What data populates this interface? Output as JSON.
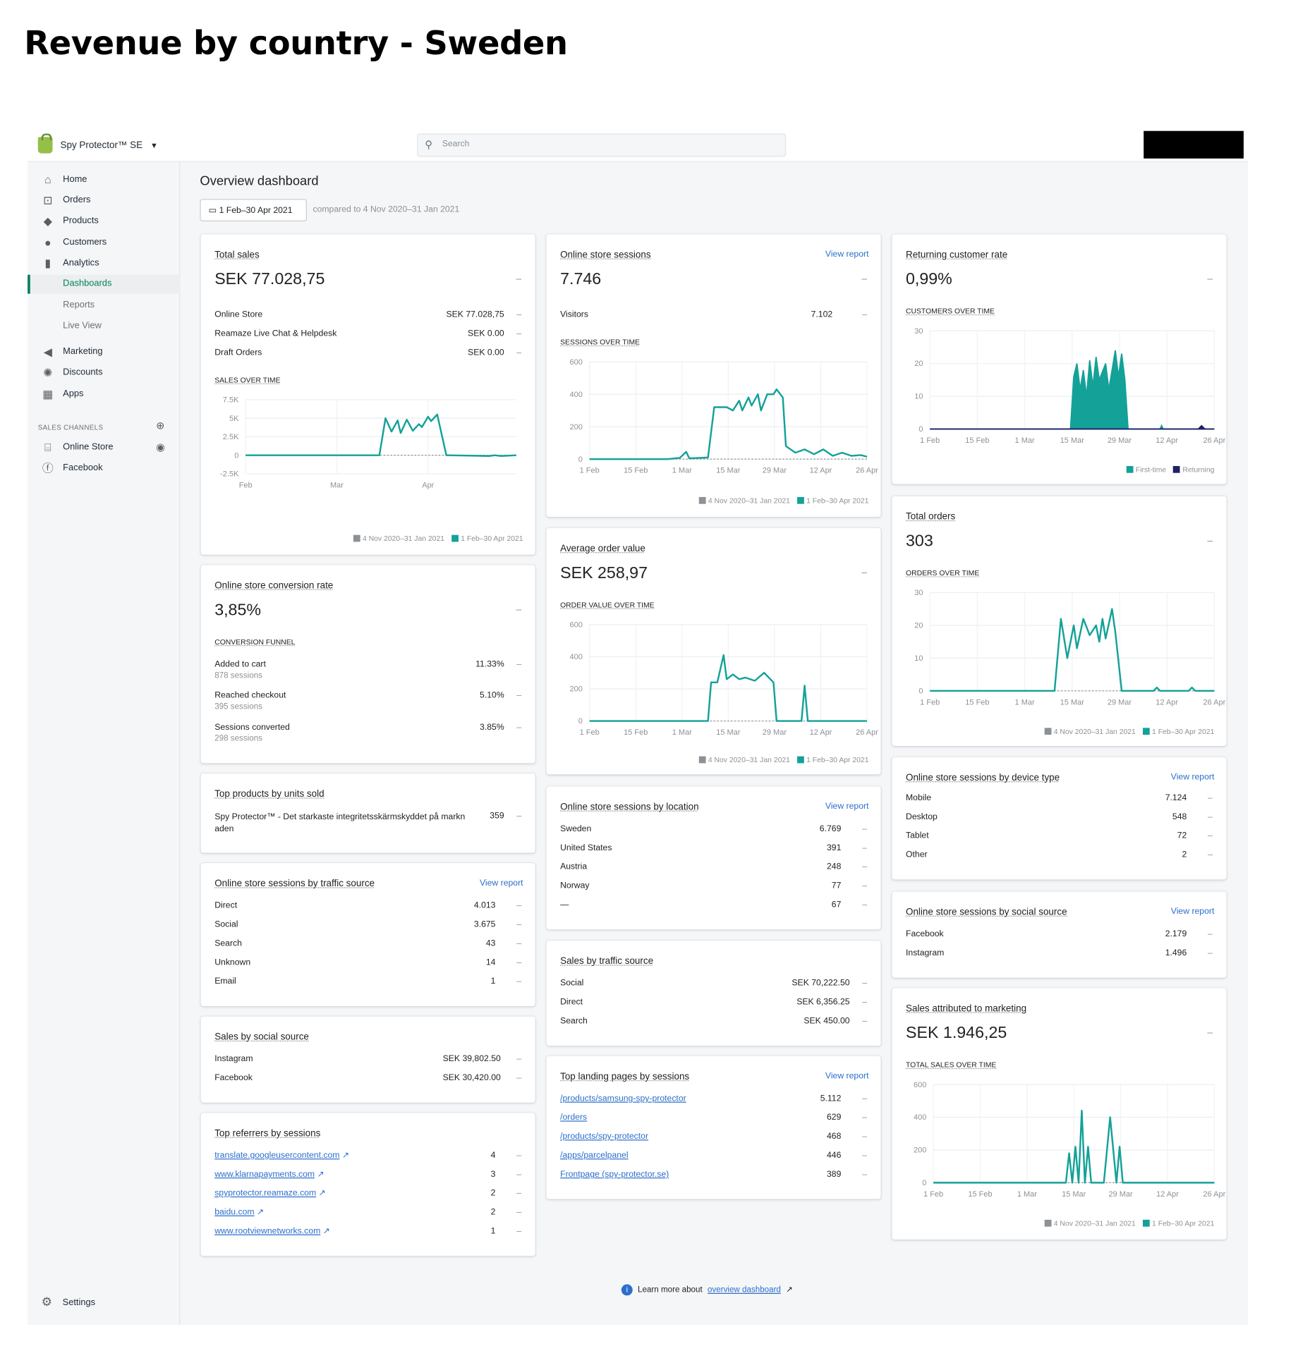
{
  "page_heading": "Revenue by country - Sweden",
  "topbar": {
    "store_name": "Spy Protector™ SE",
    "search_placeholder": "Search"
  },
  "sidebar": {
    "items": [
      {
        "label": "Home",
        "icon": "home-icon"
      },
      {
        "label": "Orders",
        "icon": "orders-icon"
      },
      {
        "label": "Products",
        "icon": "tag-icon"
      },
      {
        "label": "Customers",
        "icon": "person-icon"
      },
      {
        "label": "Analytics",
        "icon": "bar-chart-icon"
      },
      {
        "label": "Dashboards"
      },
      {
        "label": "Reports"
      },
      {
        "label": "Live View"
      },
      {
        "label": "Marketing",
        "icon": "megaphone-icon"
      },
      {
        "label": "Discounts",
        "icon": "discount-icon"
      },
      {
        "label": "Apps",
        "icon": "apps-icon"
      }
    ],
    "sales_channels_label": "SALES CHANNELS",
    "channels": [
      {
        "label": "Online Store"
      },
      {
        "label": "Facebook"
      }
    ],
    "settings_label": "Settings"
  },
  "dashboard": {
    "title": "Overview dashboard",
    "date_range": "1 Feb–30 Apr 2021",
    "compare_text": "compared to 4 Nov 2020–31 Jan 2021",
    "legend_prev": "4 Nov 2020–31 Jan 2021",
    "legend_curr": "1 Feb–30 Apr 2021",
    "view_report": "View report",
    "dash": "–",
    "footer": {
      "prefix": "Learn more about",
      "link": "overview dashboard"
    }
  },
  "total_sales": {
    "title": "Total sales",
    "value": "SEK 77.028,75",
    "rows": [
      {
        "label": "Online Store",
        "value": "SEK 77.028,75"
      },
      {
        "label": "Reamaze Live Chat & Helpdesk",
        "value": "SEK 0.00"
      },
      {
        "label": "Draft Orders",
        "value": "SEK 0.00"
      }
    ],
    "chart_label": "SALES OVER TIME"
  },
  "conversion": {
    "title": "Online store conversion rate",
    "value": "3,85%",
    "funnel_label": "CONVERSION FUNNEL",
    "rows": [
      {
        "label": "Added to cart",
        "sub": "878 sessions",
        "value": "11.33%"
      },
      {
        "label": "Reached checkout",
        "sub": "395 sessions",
        "value": "5.10%"
      },
      {
        "label": "Sessions converted",
        "sub": "298 sessions",
        "value": "3.85%"
      }
    ]
  },
  "top_products": {
    "title": "Top products by units sold",
    "rows": [
      {
        "label": "Spy Protector™ - Det starkaste integritetsskärmskyddet på markn aden",
        "value": "359"
      }
    ]
  },
  "traffic_sessions": {
    "title": "Online store sessions by traffic source",
    "rows": [
      {
        "label": "Direct",
        "value": "4.013"
      },
      {
        "label": "Social",
        "value": "3.675"
      },
      {
        "label": "Search",
        "value": "43"
      },
      {
        "label": "Unknown",
        "value": "14"
      },
      {
        "label": "Email",
        "value": "1"
      }
    ]
  },
  "social_sales": {
    "title": "Sales by social source",
    "rows": [
      {
        "label": "Instagram",
        "value": "SEK 39,802.50"
      },
      {
        "label": "Facebook",
        "value": "SEK 30,420.00"
      }
    ]
  },
  "referrers": {
    "title": "Top referrers by sessions",
    "rows": [
      {
        "label": "translate.googleusercontent.com",
        "value": "4"
      },
      {
        "label": "www.klarnapayments.com",
        "value": "3"
      },
      {
        "label": "spyprotector.reamaze.com",
        "value": "2"
      },
      {
        "label": "baidu.com",
        "value": "2"
      },
      {
        "label": "www.rootviewnetworks.com",
        "value": "1"
      }
    ]
  },
  "sessions": {
    "title": "Online store sessions",
    "value": "7.746",
    "rows": [
      {
        "label": "Visitors",
        "value": "7.102"
      }
    ],
    "chart_label": "SESSIONS OVER TIME"
  },
  "aov": {
    "title": "Average order value",
    "value": "SEK 258,97",
    "chart_label": "ORDER VALUE OVER TIME"
  },
  "location": {
    "title": "Online store sessions by location",
    "rows": [
      {
        "label": "Sweden",
        "value": "6.769"
      },
      {
        "label": "United States",
        "value": "391"
      },
      {
        "label": "Austria",
        "value": "248"
      },
      {
        "label": "Norway",
        "value": "77"
      },
      {
        "label": "—",
        "value": "67"
      }
    ]
  },
  "traffic_sales": {
    "title": "Sales by traffic source",
    "rows": [
      {
        "label": "Social",
        "value": "SEK 70,222.50"
      },
      {
        "label": "Direct",
        "value": "SEK 6,356.25"
      },
      {
        "label": "Search",
        "value": "SEK 450.00"
      }
    ]
  },
  "landing": {
    "title": "Top landing pages by sessions",
    "rows": [
      {
        "label": "/products/samsung-spy-protector",
        "value": "5.112"
      },
      {
        "label": "/orders",
        "value": "629"
      },
      {
        "label": "/products/spy-protector",
        "value": "468"
      },
      {
        "label": "/apps/parcelpanel",
        "value": "446"
      },
      {
        "label": "Frontpage (spy-protector.se)",
        "value": "389"
      }
    ]
  },
  "returning": {
    "title": "Returning customer rate",
    "value": "0,99%",
    "chart_label": "CUSTOMERS OVER TIME",
    "legend_first": "First-time",
    "legend_returning": "Returning"
  },
  "orders": {
    "title": "Total orders",
    "value": "303",
    "chart_label": "ORDERS OVER TIME"
  },
  "device": {
    "title": "Online store sessions by device type",
    "rows": [
      {
        "label": "Mobile",
        "value": "7.124"
      },
      {
        "label": "Desktop",
        "value": "548"
      },
      {
        "label": "Tablet",
        "value": "72"
      },
      {
        "label": "Other",
        "value": "2"
      }
    ]
  },
  "social_sessions": {
    "title": "Online store sessions by social source",
    "rows": [
      {
        "label": "Facebook",
        "value": "2.179"
      },
      {
        "label": "Instagram",
        "value": "1.496"
      }
    ]
  },
  "marketing": {
    "title": "Sales attributed to marketing",
    "value": "SEK 1.946,25",
    "chart_label": "TOTAL SALES OVER TIME"
  },
  "colors": {
    "accent": "#14a198",
    "prev_series": "#8c9196",
    "returning": "#1f2164",
    "link": "#2c6ecb",
    "active_nav": "#008060"
  },
  "chart_data": [
    {
      "id": "sales",
      "type": "line",
      "x_ticks": [
        "Feb",
        "Mar",
        "Apr"
      ],
      "y_ticks": [
        "7.5K",
        "5K",
        "2.5K",
        "0",
        "-2.5K"
      ],
      "ylim": [
        -2500,
        7500
      ],
      "x_range": [
        0,
        89
      ],
      "series": [
        {
          "name": "1 Feb–30 Apr 2021",
          "values": [
            [
              0,
              0
            ],
            [
              44,
              0
            ],
            [
              46,
              5000
            ],
            [
              48,
              3200
            ],
            [
              50,
              4700
            ],
            [
              51,
              3000
            ],
            [
              53,
              4800
            ],
            [
              55,
              3300
            ],
            [
              57,
              4200
            ],
            [
              58,
              3800
            ],
            [
              60,
              5200
            ],
            [
              61,
              4600
            ],
            [
              63,
              5500
            ],
            [
              66,
              0
            ],
            [
              80,
              -100
            ],
            [
              82,
              0
            ],
            [
              84,
              -100
            ],
            [
              89,
              0
            ]
          ]
        }
      ]
    },
    {
      "id": "sessions",
      "type": "line",
      "x_ticks": [
        "1 Feb",
        "15 Feb",
        "1 Mar",
        "15 Mar",
        "29 Mar",
        "12 Apr",
        "26 Apr"
      ],
      "y_ticks": [
        "600",
        "400",
        "200",
        "0"
      ],
      "ylim": [
        0,
        600
      ],
      "x_range": [
        0,
        89
      ],
      "series": [
        {
          "name": "1 Feb–30 Apr 2021",
          "values": [
            [
              0,
              0
            ],
            [
              25,
              0
            ],
            [
              29,
              8
            ],
            [
              31,
              45
            ],
            [
              32,
              5
            ],
            [
              38,
              10
            ],
            [
              40,
              320
            ],
            [
              44,
              320
            ],
            [
              46,
              300
            ],
            [
              48,
              360
            ],
            [
              49,
              300
            ],
            [
              51,
              380
            ],
            [
              52,
              330
            ],
            [
              54,
              400
            ],
            [
              55,
              300
            ],
            [
              57,
              400
            ],
            [
              59,
              400
            ],
            [
              60,
              430
            ],
            [
              62,
              380
            ],
            [
              63,
              80
            ],
            [
              66,
              40
            ],
            [
              69,
              60
            ],
            [
              72,
              30
            ],
            [
              75,
              60
            ],
            [
              78,
              20
            ],
            [
              81,
              40
            ],
            [
              84,
              20
            ],
            [
              87,
              25
            ],
            [
              89,
              15
            ]
          ]
        }
      ]
    },
    {
      "id": "aov",
      "type": "line",
      "x_ticks": [
        "1 Feb",
        "15 Feb",
        "1 Mar",
        "15 Mar",
        "29 Mar",
        "12 Apr",
        "26 Apr"
      ],
      "y_ticks": [
        "600",
        "400",
        "200",
        "0"
      ],
      "ylim": [
        0,
        600
      ],
      "x_range": [
        0,
        89
      ],
      "series": [
        {
          "name": "1 Feb–30 Apr 2021",
          "values": [
            [
              0,
              0
            ],
            [
              38,
              0
            ],
            [
              39,
              240
            ],
            [
              41,
              240
            ],
            [
              43,
              410
            ],
            [
              44,
              260
            ],
            [
              46,
              290
            ],
            [
              48,
              260
            ],
            [
              50,
              270
            ],
            [
              53,
              250
            ],
            [
              56,
              300
            ],
            [
              59,
              240
            ],
            [
              60,
              0
            ],
            [
              68,
              0
            ],
            [
              69,
              220
            ],
            [
              70,
              0
            ],
            [
              89,
              0
            ]
          ]
        }
      ]
    },
    {
      "id": "returning",
      "type": "area",
      "x_ticks": [
        "1 Feb",
        "15 Feb",
        "1 Mar",
        "15 Mar",
        "29 Mar",
        "12 Apr",
        "26 Apr"
      ],
      "y_ticks": [
        "30",
        "20",
        "10",
        "0"
      ],
      "ylim": [
        0,
        30
      ],
      "x_range": [
        0,
        89
      ],
      "series": [
        {
          "name": "First-time",
          "values": [
            [
              0,
              0
            ],
            [
              44,
              0
            ],
            [
              45,
              16
            ],
            [
              46,
              20
            ],
            [
              47,
              12
            ],
            [
              48,
              18
            ],
            [
              49,
              10
            ],
            [
              50,
              21
            ],
            [
              51,
              13
            ],
            [
              52,
              22
            ],
            [
              53,
              15
            ],
            [
              55,
              20
            ],
            [
              56,
              12
            ],
            [
              58,
              24
            ],
            [
              59,
              16
            ],
            [
              60,
              23
            ],
            [
              61,
              15
            ],
            [
              62,
              0
            ],
            [
              72,
              0
            ],
            [
              72.5,
              1
            ],
            [
              73,
              0
            ],
            [
              89,
              0
            ]
          ]
        },
        {
          "name": "Returning",
          "values": [
            [
              0,
              0
            ],
            [
              84,
              0
            ],
            [
              85,
              1
            ],
            [
              86,
              0
            ],
            [
              89,
              0
            ]
          ]
        }
      ]
    },
    {
      "id": "orders",
      "type": "line",
      "x_ticks": [
        "1 Feb",
        "15 Feb",
        "1 Mar",
        "15 Mar",
        "29 Mar",
        "12 Apr",
        "26 Apr"
      ],
      "y_ticks": [
        "30",
        "20",
        "10",
        "0"
      ],
      "ylim": [
        0,
        30
      ],
      "x_range": [
        0,
        89
      ],
      "series": [
        {
          "name": "1 Feb–30 Apr 2021",
          "values": [
            [
              0,
              0
            ],
            [
              39,
              0
            ],
            [
              41,
              22
            ],
            [
              43,
              10
            ],
            [
              45,
              20
            ],
            [
              46,
              13
            ],
            [
              48,
              22
            ],
            [
              50,
              17
            ],
            [
              52,
              20
            ],
            [
              53,
              15
            ],
            [
              54,
              22
            ],
            [
              55,
              16
            ],
            [
              57,
              25
            ],
            [
              58,
              18
            ],
            [
              60,
              0
            ],
            [
              70,
              0
            ],
            [
              71,
              1
            ],
            [
              72,
              0
            ],
            [
              81,
              0
            ],
            [
              82,
              1
            ],
            [
              83,
              0
            ],
            [
              89,
              0
            ]
          ]
        }
      ]
    },
    {
      "id": "marketing",
      "type": "line",
      "x_ticks": [
        "1 Feb",
        "15 Feb",
        "1 Mar",
        "15 Mar",
        "29 Mar",
        "12 Apr",
        "26 Apr"
      ],
      "y_ticks": [
        "600",
        "400",
        "200",
        "0"
      ],
      "ylim": [
        0,
        600
      ],
      "x_range": [
        0,
        89
      ],
      "series": [
        {
          "name": "1 Feb–30 Apr 2021",
          "values": [
            [
              0,
              0
            ],
            [
              42,
              0
            ],
            [
              43,
              180
            ],
            [
              44,
              0
            ],
            [
              45,
              220
            ],
            [
              46,
              0
            ],
            [
              47,
              440
            ],
            [
              48,
              0
            ],
            [
              49,
              220
            ],
            [
              50,
              0
            ],
            [
              54,
              0
            ],
            [
              56,
              400
            ],
            [
              58,
              0
            ],
            [
              59,
              220
            ],
            [
              60,
              0
            ],
            [
              89,
              0
            ]
          ]
        }
      ]
    }
  ]
}
